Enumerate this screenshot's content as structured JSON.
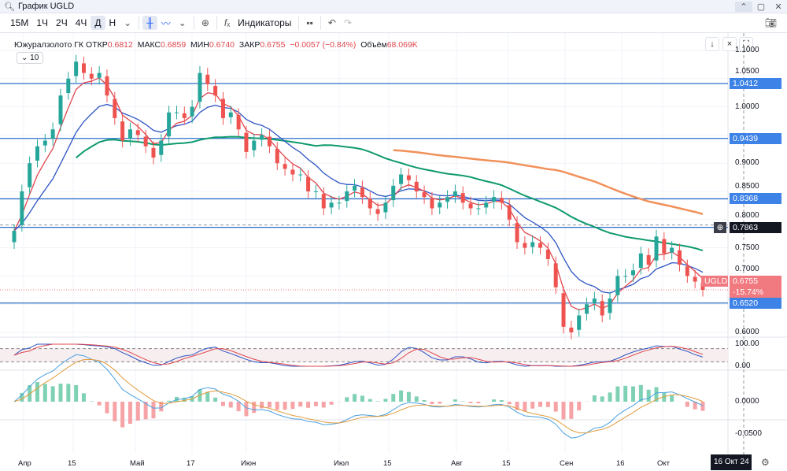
{
  "window": {
    "search_title": "График UGLD",
    "controls": [
      "⌃",
      "▢",
      "✕"
    ]
  },
  "toolbar": {
    "intervals": [
      "15M",
      "1Ч",
      "2Ч",
      "4Ч",
      "Д",
      "Н"
    ],
    "selected_interval": "Д",
    "indicators_label": "Индикаторы",
    "icons": [
      "chevron-down-icon",
      "candles-icon",
      "line-chart-icon",
      "chevron-down-icon",
      "add-compare-icon",
      "fx-icon",
      "layout-icon",
      "undo-icon",
      "redo-icon",
      "camera-icon"
    ]
  },
  "legend": {
    "name": "Южуралзолото ГК",
    "open_label": "ОТКР",
    "open": "0.6812",
    "high_label": "МАКС",
    "high": "0.6859",
    "low_label": "МИН",
    "low": "0.6740",
    "close_label": "ЗАКР",
    "close": "0.6755",
    "change": "−0.0057 (−0.84%)",
    "volume_label": "Объём",
    "volume": "68.069K",
    "collapse_label": "10"
  },
  "colors": {
    "up": "#26a69a",
    "down": "#ef5350",
    "levels": "#2f6fc9",
    "ema_fast": "#e0474e",
    "ema_slow": "#2d54c4",
    "sma100": "#0f9a6e",
    "sma200": "#f2905a",
    "last_price": "#f07a80"
  },
  "chart_data": {
    "type": "candlestick",
    "symbol": "UGLD",
    "price_axis": {
      "ticks": [
        "1.1000",
        "1.0500",
        "1.0000",
        "0.9000",
        "0.8500",
        "0.8000",
        "0.7500",
        "0.7000",
        "0.6000"
      ],
      "range": [
        0.6,
        1.1
      ]
    },
    "closes": [
      0.78,
      0.85,
      0.9,
      0.93,
      0.94,
      0.96,
      1.02,
      1.05,
      1.08,
      1.06,
      1.05,
      1.06,
      1.02,
      0.98,
      0.94,
      0.96,
      0.95,
      0.93,
      0.91,
      0.94,
      0.99,
      0.99,
      0.98,
      1.0,
      1.06,
      1.04,
      1.02,
      0.98,
      0.99,
      0.96,
      0.92,
      0.94,
      0.95,
      0.93,
      0.9,
      0.89,
      0.88,
      0.88,
      0.85,
      0.85,
      0.82,
      0.83,
      0.83,
      0.85,
      0.86,
      0.84,
      0.82,
      0.81,
      0.83,
      0.86,
      0.88,
      0.87,
      0.85,
      0.84,
      0.82,
      0.83,
      0.84,
      0.85,
      0.83,
      0.82,
      0.82,
      0.83,
      0.84,
      0.83,
      0.8,
      0.76,
      0.75,
      0.76,
      0.75,
      0.73,
      0.68,
      0.61,
      0.6,
      0.63,
      0.65,
      0.66,
      0.63,
      0.66,
      0.7,
      0.7,
      0.71,
      0.74,
      0.72,
      0.77,
      0.74,
      0.75,
      0.72,
      0.7,
      0.69,
      0.6755
    ],
    "levels": [
      {
        "value": "1.0412"
      },
      {
        "value": "0.9439"
      },
      {
        "value": "0.8368"
      },
      {
        "value": "0.7863",
        "crosshair": true
      },
      {
        "value": "0.6520"
      }
    ],
    "last": {
      "label": "UGLD",
      "price": "0.6755",
      "change": "-15.74%"
    },
    "stoch_axis": [
      "100.00",
      "0.00"
    ],
    "macd_axis": [
      "0.0000",
      "-0.0500"
    ],
    "x_ticks": [
      "Апр",
      "15",
      "Май",
      "17",
      "Июн",
      "Июл",
      "15",
      "Авг",
      "15",
      "Сен",
      "16",
      "Окт"
    ],
    "crosshair_date": "16 Окт 24"
  }
}
